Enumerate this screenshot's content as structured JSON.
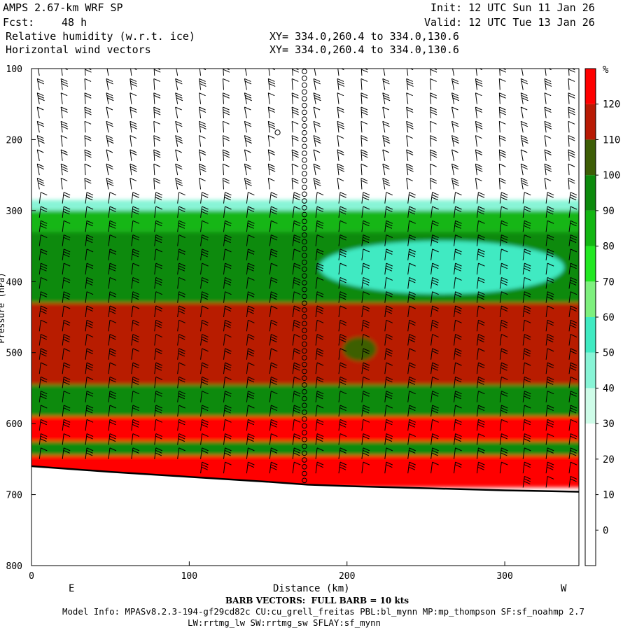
{
  "header": {
    "model": "AMPS 2.67-km WRF SP",
    "init": "Init: 12 UTC Sun 11 Jan 26",
    "fcst_label": "Fcst:",
    "fcst_value": "48 h",
    "valid": "Valid: 12 UTC Tue 13 Jan 26",
    "field1": "Relative humidity (w.r.t. ice)",
    "field2": "Horizontal wind vectors",
    "xy1": "XY= 334.0,260.4 to 334.0,130.6",
    "xy2": "XY= 334.0,260.4 to 334.0,130.6"
  },
  "footer": {
    "barb": "BARB VECTORS:  FULL BARB = 10 kts",
    "info1": "Model Info: MPASv8.2.3-194-gf29cd82c CU:cu_grell_freitas PBL:bl_mynn MP:mp_thompson SF:sf_noahmp 2.7",
    "info2": "LW:rrtmg_lw SW:rrtmg_sw SFLAY:sf_mynn"
  },
  "chart_data": {
    "type": "heatmap",
    "title": "Relative humidity (w.r.t. ice) cross-section",
    "xlabel": "Distance (km)",
    "ylabel": "Pressure (hPa)",
    "x_ticks": [
      0,
      100,
      200,
      300
    ],
    "y_ticks": [
      100,
      200,
      300,
      400,
      500,
      600,
      700,
      800
    ],
    "xlim": [
      0,
      347
    ],
    "ylim": [
      800,
      100
    ],
    "endpoints": {
      "left": "E",
      "right": "W"
    },
    "colorbar": {
      "unit": "%",
      "levels": [
        0,
        10,
        20,
        30,
        40,
        50,
        60,
        70,
        80,
        90,
        100,
        110,
        120
      ],
      "colors": [
        "#ffffff",
        "#ffffff",
        "#ffffff",
        "#ffffff",
        "#cefce8",
        "#88f4d6",
        "#40eac2",
        "#7ef07e",
        "#22e822",
        "#13b613",
        "#0c8a0c",
        "#3d5e06",
        "#b81a04",
        "#ff0000"
      ]
    },
    "layers": [
      {
        "p_top": 285,
        "p_bot": 300,
        "rh": 40
      },
      {
        "p_top": 300,
        "p_bot": 330,
        "rh": 80
      },
      {
        "p_top": 330,
        "p_bot": 430,
        "rh": 90
      },
      {
        "p_top": 430,
        "p_bot": 545,
        "rh": 115
      },
      {
        "p_top": 545,
        "p_bot": 590,
        "rh": 95
      },
      {
        "p_top": 590,
        "p_bot": 625,
        "rh": 125
      },
      {
        "p_top": 625,
        "p_bot": 645,
        "rh": 90
      },
      {
        "p_top": 645,
        "p_bot": 690,
        "rh": 125
      }
    ],
    "features": [
      {
        "label": "dry region aloft",
        "x_km": 260,
        "p": 380,
        "rh": 50
      },
      {
        "label": "moist pocket",
        "x_km": 208,
        "p": 495,
        "rh": 100
      }
    ],
    "terrain_hPa": {
      "x": [
        0,
        50,
        100,
        150,
        175,
        200,
        250,
        300,
        347
      ],
      "p": [
        660,
        668,
        675,
        682,
        686,
        688,
        691,
        694,
        696
      ]
    },
    "marker_column_km": 173,
    "marker_glyph": "o"
  }
}
